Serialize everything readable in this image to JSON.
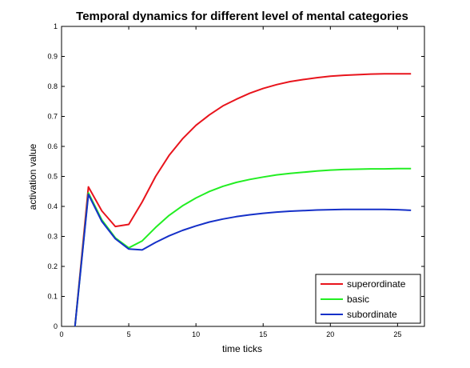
{
  "chart_data": {
    "type": "line",
    "title": "Temporal dynamics for different level of mental categories",
    "xlabel": "time ticks",
    "ylabel": "activation value",
    "xlim": [
      0,
      27
    ],
    "ylim": [
      0,
      1
    ],
    "x_ticks": [
      0,
      5,
      10,
      15,
      20,
      25
    ],
    "y_ticks": [
      0,
      0.1,
      0.2,
      0.3,
      0.4,
      0.5,
      0.6,
      0.7,
      0.8,
      0.9,
      1
    ],
    "grid": false,
    "legend_position": "bottom-right",
    "x": [
      1,
      2,
      3,
      4,
      5,
      6,
      7,
      8,
      9,
      10,
      11,
      12,
      13,
      14,
      15,
      16,
      17,
      18,
      19,
      20,
      21,
      22,
      23,
      24,
      25,
      26
    ],
    "series": [
      {
        "name": "superordinate",
        "color": "#e8141c",
        "values": [
          0,
          0.465,
          0.385,
          0.333,
          0.34,
          0.415,
          0.5,
          0.57,
          0.625,
          0.67,
          0.705,
          0.735,
          0.757,
          0.777,
          0.793,
          0.806,
          0.816,
          0.823,
          0.829,
          0.834,
          0.837,
          0.839,
          0.841,
          0.842,
          0.842,
          0.842
        ]
      },
      {
        "name": "basic",
        "color": "#22ee22",
        "values": [
          0,
          0.445,
          0.355,
          0.295,
          0.262,
          0.285,
          0.33,
          0.37,
          0.402,
          0.428,
          0.45,
          0.467,
          0.48,
          0.49,
          0.498,
          0.505,
          0.51,
          0.514,
          0.518,
          0.521,
          0.523,
          0.524,
          0.525,
          0.525,
          0.526,
          0.526
        ]
      },
      {
        "name": "subordinate",
        "color": "#1530c8",
        "values": [
          0,
          0.44,
          0.35,
          0.292,
          0.258,
          0.255,
          0.28,
          0.302,
          0.32,
          0.335,
          0.348,
          0.358,
          0.366,
          0.372,
          0.377,
          0.381,
          0.384,
          0.386,
          0.388,
          0.389,
          0.39,
          0.39,
          0.39,
          0.39,
          0.389,
          0.387
        ]
      }
    ]
  }
}
